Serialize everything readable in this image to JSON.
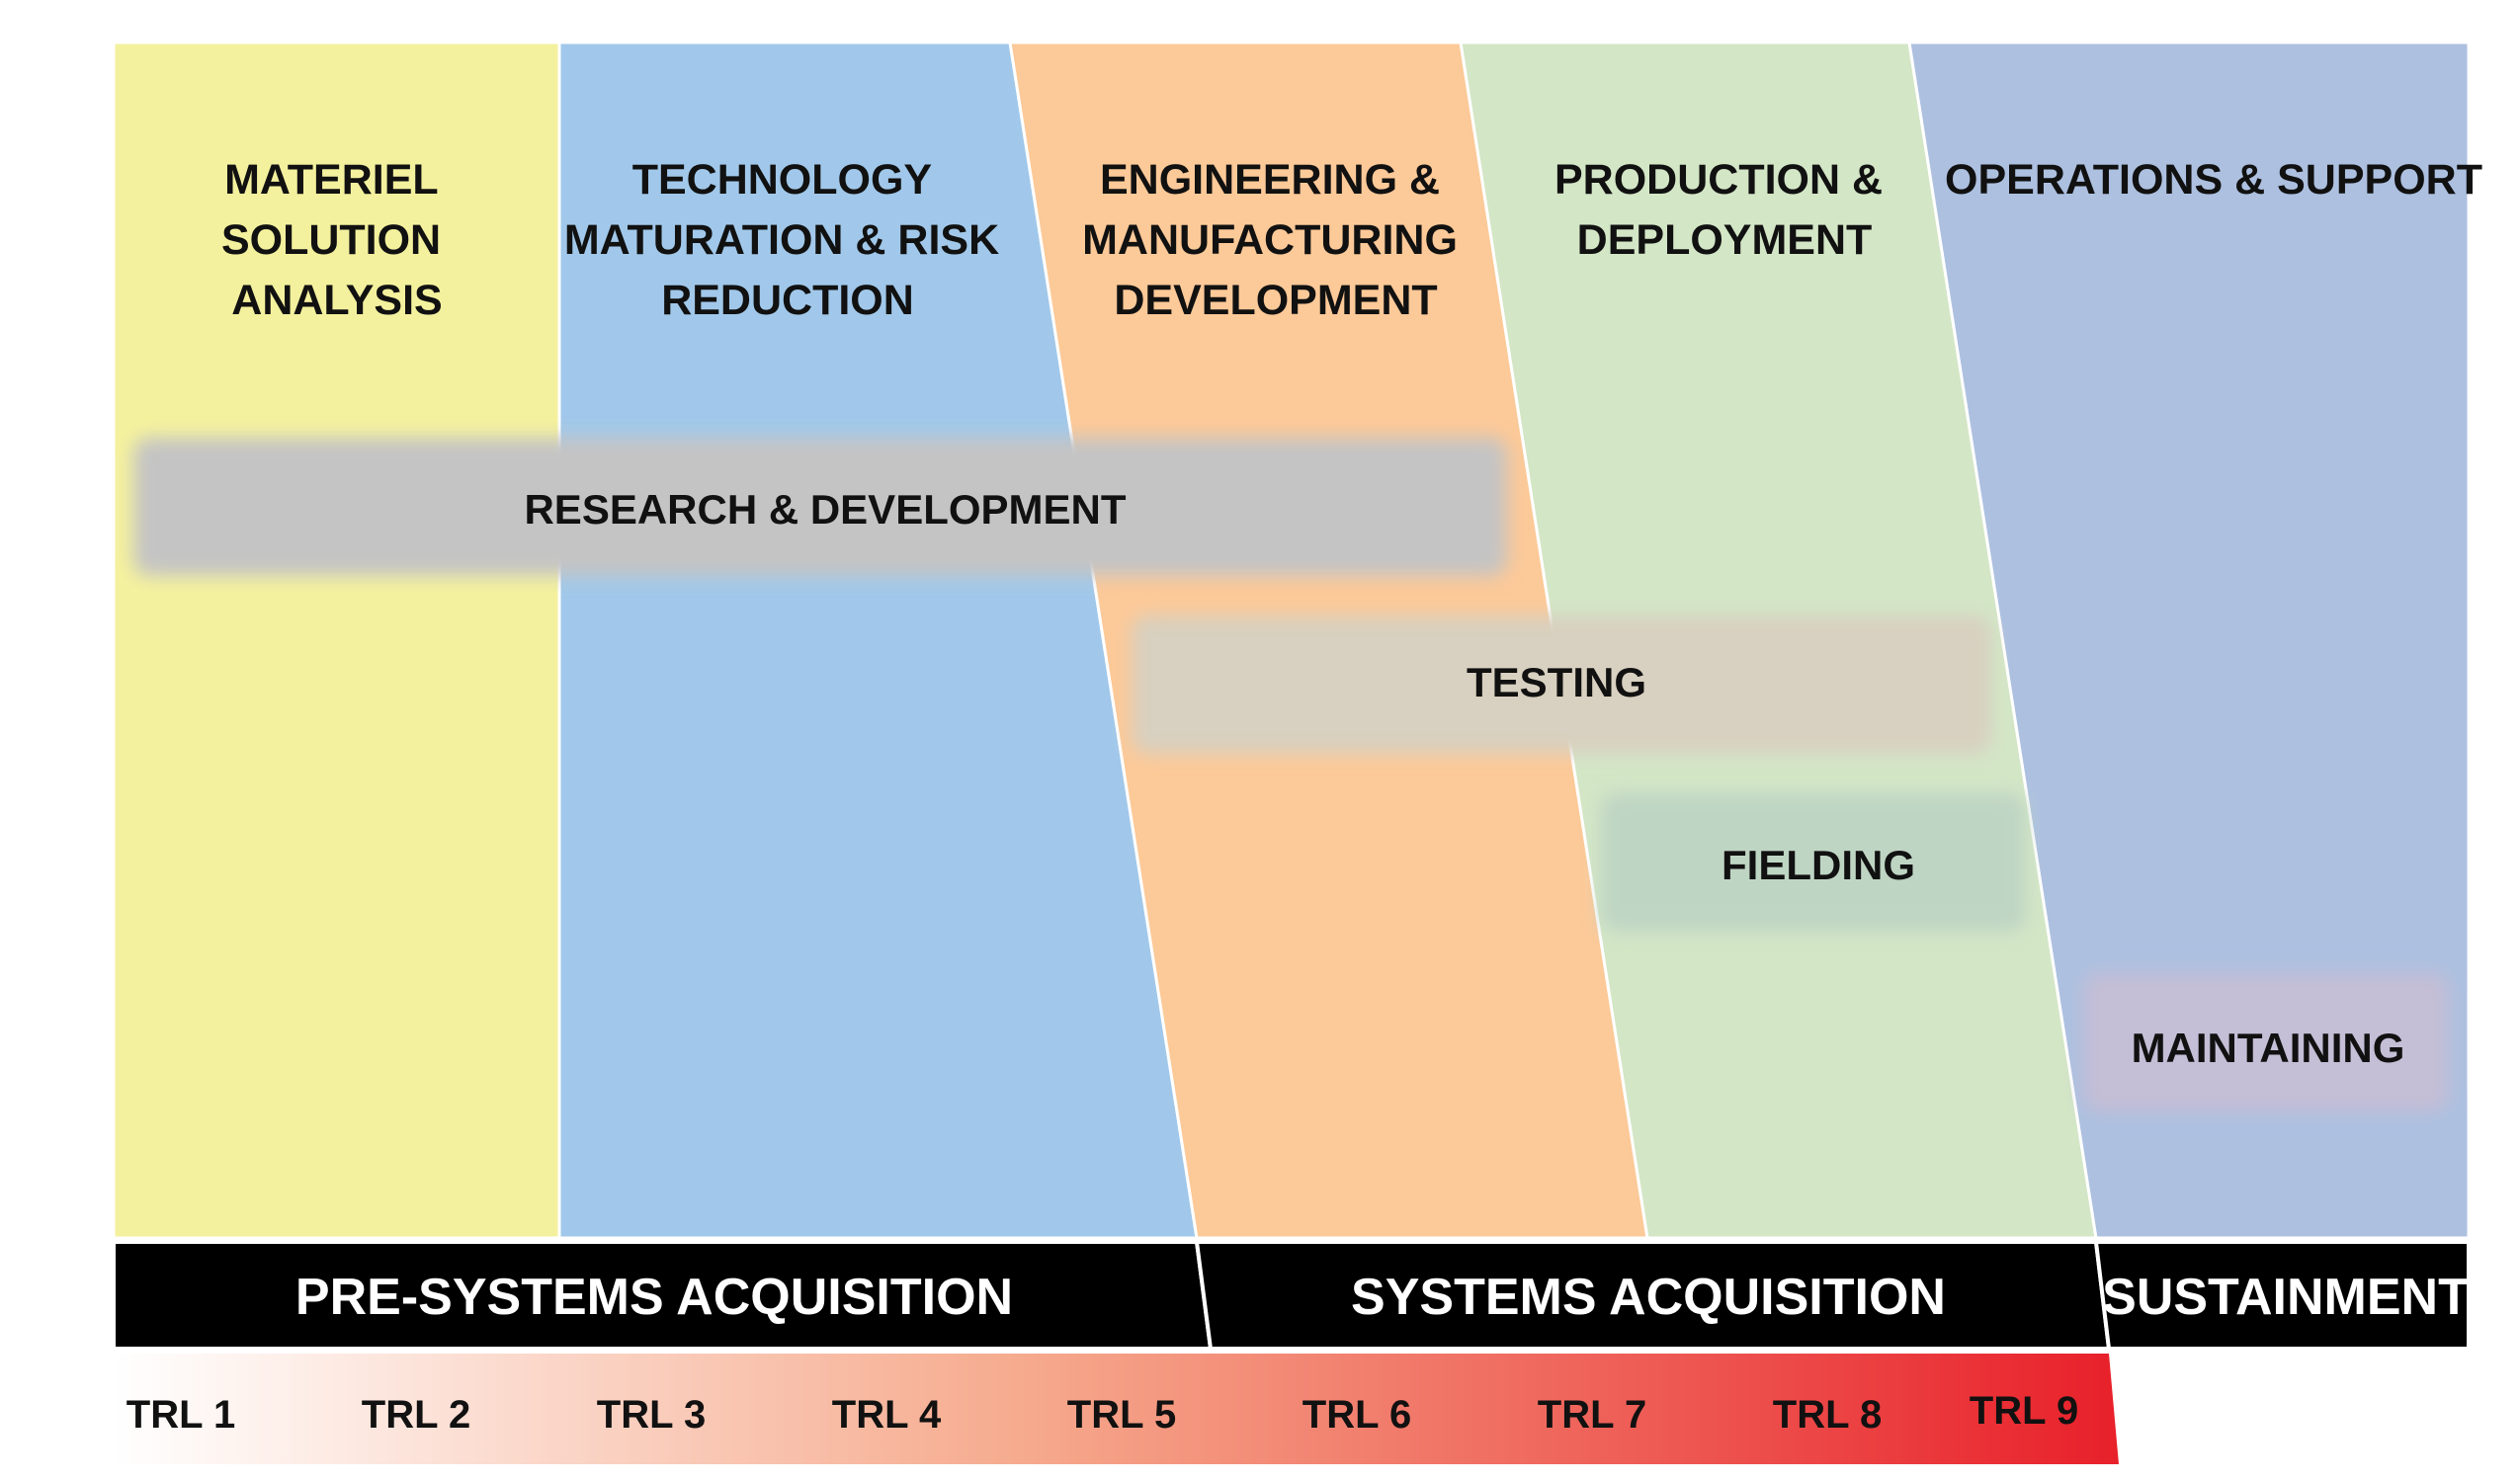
{
  "phases": [
    {
      "lines": [
        "MATERIEL",
        "SOLUTION",
        "ANALYSIS"
      ],
      "color": "#f4f19e"
    },
    {
      "lines": [
        "TECHNOLOGY",
        "MATURATION & RISK",
        "REDUCTION"
      ],
      "color": "#a1c8ea"
    },
    {
      "lines": [
        "ENGINEERING &",
        "MANUFACTURING",
        "DEVELOPMENT"
      ],
      "color": "#fcc998"
    },
    {
      "lines": [
        "PRODUCTION &",
        "DEPLOYMENT"
      ],
      "color": "#d3e6c6"
    },
    {
      "lines": [
        "OPERATIONS & SUPPORT"
      ],
      "color": "#adc0e0"
    }
  ],
  "activities": [
    {
      "label": "RESEARCH & DEVELOPMENT",
      "color": "#c4c4c4"
    },
    {
      "label": "TESTING",
      "color": "#d8d0c0"
    },
    {
      "label": "FIELDING",
      "color": "#bfd5c4"
    },
    {
      "label": "MAINTAINING",
      "color": "#c4bed6"
    }
  ],
  "acquisition_bars": [
    {
      "label": "PRE-SYSTEMS ACQUISITION"
    },
    {
      "label": "SYSTEMS ACQUISITION"
    },
    {
      "label": "SUSTAINMENT"
    }
  ],
  "trl": {
    "labels": [
      "TRL 1",
      "TRL 2",
      "TRL 3",
      "TRL 4",
      "TRL 5",
      "TRL 6",
      "TRL 7",
      "TRL 8",
      "TRL 9"
    ],
    "gradient_start": "#ffffff",
    "gradient_end": "#e8202a"
  }
}
